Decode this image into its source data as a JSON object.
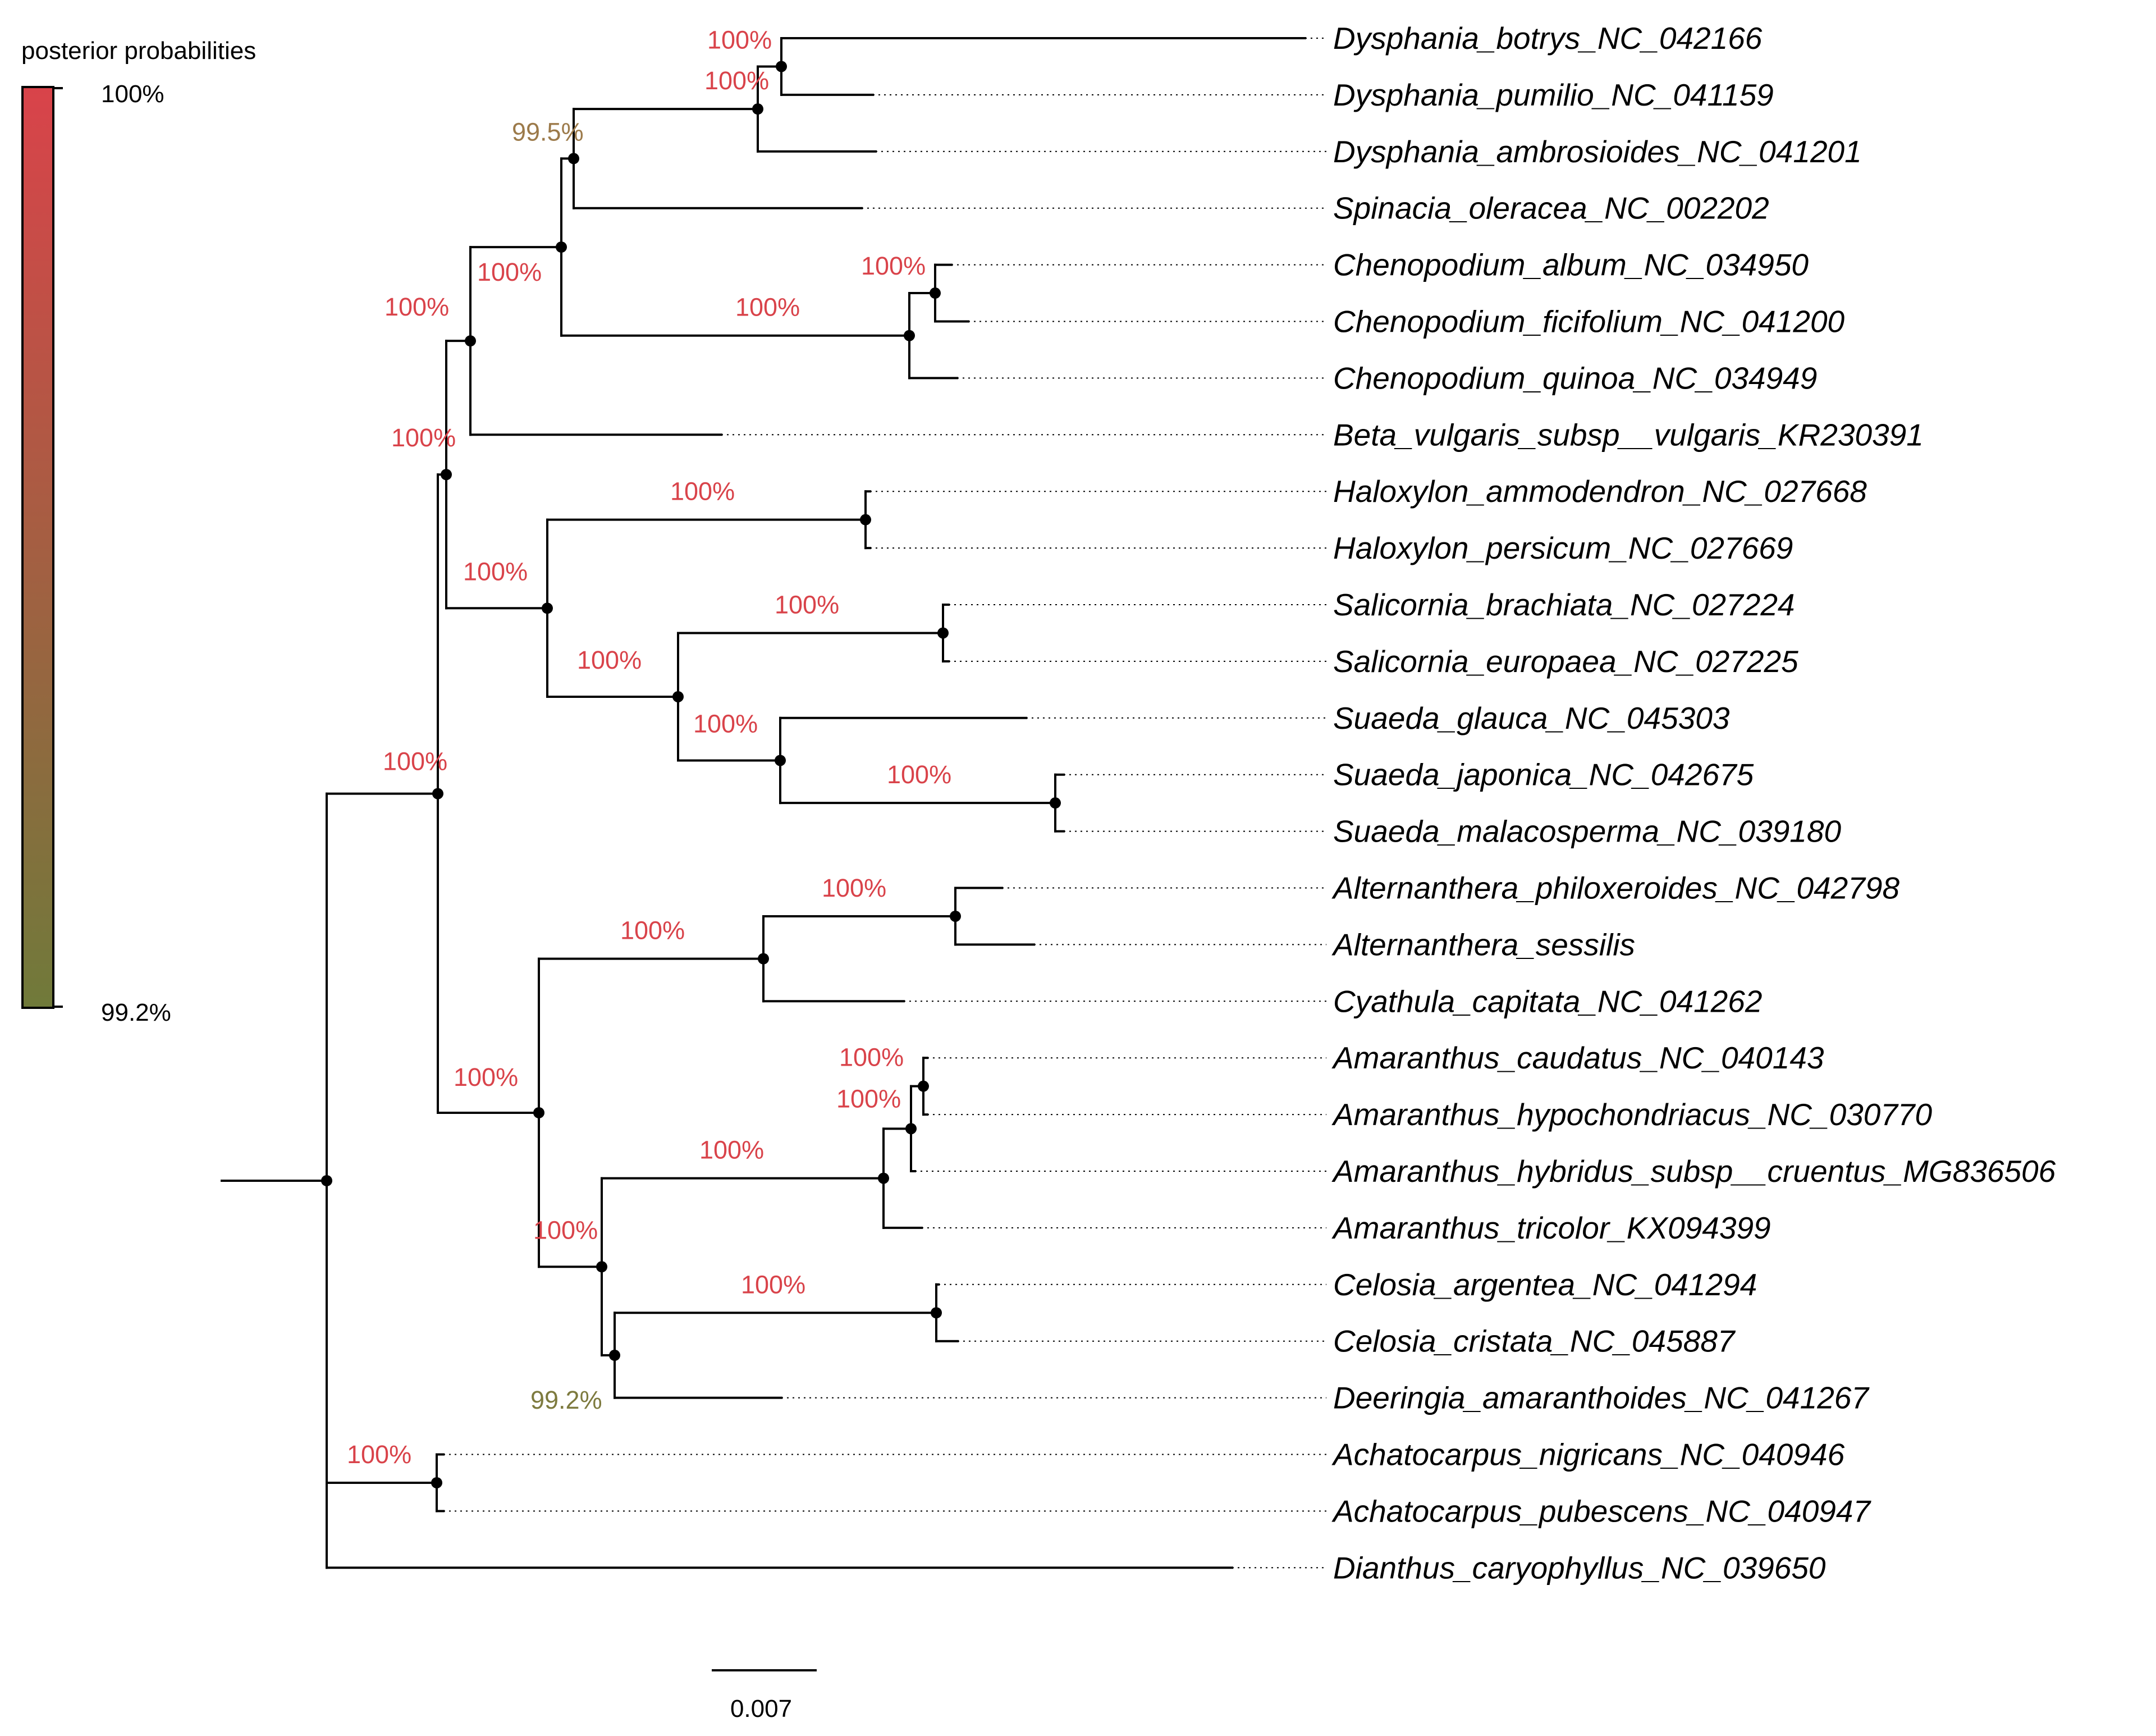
{
  "legend": {
    "title": "posterior probabilities",
    "max_label": "100%",
    "min_label": "99.2%",
    "color_max": "#d9434a",
    "color_min": "#707a3a"
  },
  "scale_bar": {
    "label": "0.007",
    "value": 0.007
  },
  "colors": {
    "support_high": "#d9434a",
    "support_mid": "#9c7a4a",
    "support_low": "#7d7a3e"
  },
  "tree": {
    "branch_lengths_unit": "substitutions per site",
    "root": {
      "support": null,
      "children": [
        {
          "support": "100%",
          "children": [
            {
              "support": "100%",
              "children": [
                {
                  "support": "100%",
                  "children": [
                    {
                      "support": "100%",
                      "children": [
                        {
                          "support": "99.5%",
                          "children": [
                            {
                              "support": "100%",
                              "children": [
                                {
                                  "support": "100%",
                                  "children": [
                                    {
                                      "taxon": "Dysphania_botrys_NC_042166"
                                    },
                                    {
                                      "taxon": "Dysphania_pumilio_NC_041159"
                                    }
                                  ]
                                },
                                {
                                  "taxon": "Dysphania_ambrosioides_NC_041201"
                                }
                              ]
                            },
                            {
                              "taxon": "Spinacia_oleracea_NC_002202"
                            }
                          ]
                        },
                        {
                          "support": "100%",
                          "children": [
                            {
                              "support": "100%",
                              "children": [
                                {
                                  "taxon": "Chenopodium_album_NC_034950"
                                },
                                {
                                  "taxon": "Chenopodium_ficifolium_NC_041200"
                                }
                              ]
                            },
                            {
                              "taxon": "Chenopodium_quinoa_NC_034949"
                            }
                          ]
                        }
                      ]
                    },
                    {
                      "taxon": "Beta_vulgaris_subsp__vulgaris_KR230391"
                    }
                  ]
                },
                {
                  "support": "100%",
                  "children": [
                    {
                      "support": "100%",
                      "children": [
                        {
                          "taxon": "Haloxylon_ammodendron_NC_027668"
                        },
                        {
                          "taxon": "Haloxylon_persicum_NC_027669"
                        }
                      ]
                    },
                    {
                      "support": "100%",
                      "children": [
                        {
                          "support": "100%",
                          "children": [
                            {
                              "taxon": "Salicornia_brachiata_NC_027224"
                            },
                            {
                              "taxon": "Salicornia_europaea_NC_027225"
                            }
                          ]
                        },
                        {
                          "support": "100%",
                          "children": [
                            {
                              "taxon": "Suaeda_glauca_NC_045303"
                            },
                            {
                              "support": "100%",
                              "children": [
                                {
                                  "taxon": "Suaeda_japonica_NC_042675"
                                },
                                {
                                  "taxon": "Suaeda_malacosperma_NC_039180"
                                }
                              ]
                            }
                          ]
                        }
                      ]
                    }
                  ]
                }
              ]
            },
            {
              "support": "100%",
              "children": [
                {
                  "support": "100%",
                  "children": [
                    {
                      "support": "100%",
                      "children": [
                        {
                          "taxon": "Alternanthera_philoxeroides_NC_042798"
                        },
                        {
                          "taxon": "Alternanthera_sessilis"
                        }
                      ]
                    },
                    {
                      "taxon": "Cyathula_capitata_NC_041262"
                    }
                  ]
                },
                {
                  "support": "100%",
                  "children": [
                    {
                      "support": "100%",
                      "children": [
                        {
                          "support": "100%",
                          "children": [
                            {
                              "support": "100%",
                              "children": [
                                {
                                  "taxon": "Amaranthus_caudatus_NC_040143"
                                },
                                {
                                  "taxon": "Amaranthus_hypochondriacus_NC_030770"
                                }
                              ]
                            },
                            {
                              "taxon": "Amaranthus_hybridus_subsp__cruentus_MG836506"
                            }
                          ]
                        },
                        {
                          "taxon": "Amaranthus_tricolor_KX094399"
                        }
                      ]
                    },
                    {
                      "support": "99.2%",
                      "children": [
                        {
                          "support": "100%",
                          "children": [
                            {
                              "taxon": "Celosia_argentea_NC_041294"
                            },
                            {
                              "taxon": "Celosia_cristata_NC_045887"
                            }
                          ]
                        },
                        {
                          "taxon": "Deeringia_amaranthoides_NC_041267"
                        }
                      ]
                    }
                  ]
                }
              ]
            }
          ]
        },
        {
          "support": "100%",
          "children": [
            {
              "taxon": "Achatocarpus_nigricans_NC_040946"
            },
            {
              "taxon": "Achatocarpus_pubescens_NC_040947"
            }
          ]
        },
        {
          "taxon": "Dianthus_caryophyllus_NC_039650"
        }
      ]
    }
  }
}
